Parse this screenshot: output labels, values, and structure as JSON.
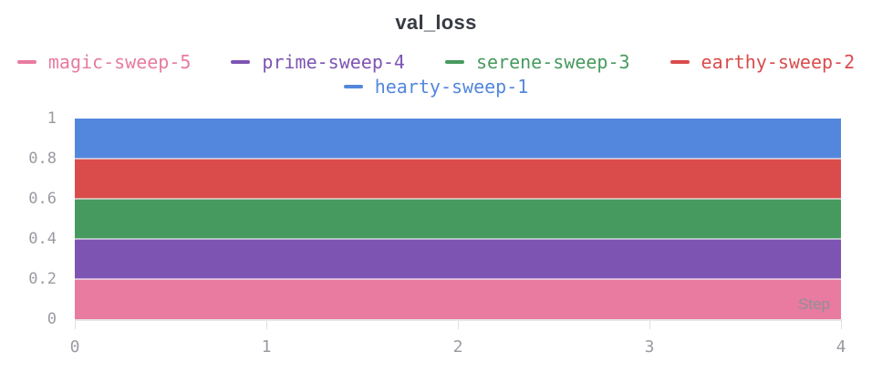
{
  "title": "val_loss",
  "legend": {
    "rows": [
      [
        {
          "label": "magic-sweep-5",
          "color": "#E87B9F"
        },
        {
          "label": "prime-sweep-4",
          "color": "#7D54B2"
        },
        {
          "label": "serene-sweep-3",
          "color": "#479A5F"
        },
        {
          "label": "earthy-sweep-2",
          "color": "#DA4C4C"
        }
      ],
      [
        {
          "label": "hearty-sweep-1",
          "color": "#5387DD"
        }
      ]
    ]
  },
  "chart_data": {
    "type": "area",
    "stacked": true,
    "title": "val_loss",
    "xlabel": "Step",
    "ylabel": "",
    "xlim": [
      0,
      4
    ],
    "ylim": [
      0,
      1
    ],
    "x_ticks": [
      "0",
      "1",
      "2",
      "3",
      "4"
    ],
    "x_tick_values": [
      0,
      1,
      2,
      3,
      4
    ],
    "y_ticks": [
      "0",
      "0.2",
      "0.4",
      "0.6",
      "0.8",
      "1"
    ],
    "y_tick_values": [
      0,
      0.2,
      0.4,
      0.6,
      0.8,
      1
    ],
    "grid": "light horizontal gridlines at y ticks, baseline at y=0",
    "legend_position": "top",
    "series": [
      {
        "name": "magic-sweep-5",
        "color": "#E87B9F",
        "band": [
          0.0,
          0.2
        ],
        "x": [
          0,
          1,
          2,
          3,
          4
        ],
        "values": [
          0.2,
          0.2,
          0.2,
          0.2,
          0.2
        ]
      },
      {
        "name": "prime-sweep-4",
        "color": "#7D54B2",
        "band": [
          0.2,
          0.4
        ],
        "x": [
          0,
          1,
          2,
          3,
          4
        ],
        "values": [
          0.2,
          0.2,
          0.2,
          0.2,
          0.2
        ]
      },
      {
        "name": "serene-sweep-3",
        "color": "#479A5F",
        "band": [
          0.4,
          0.6
        ],
        "x": [
          0,
          1,
          2,
          3,
          4
        ],
        "values": [
          0.2,
          0.2,
          0.2,
          0.2,
          0.2
        ]
      },
      {
        "name": "earthy-sweep-2",
        "color": "#DA4C4C",
        "band": [
          0.6,
          0.8
        ],
        "x": [
          0,
          1,
          2,
          3,
          4
        ],
        "values": [
          0.2,
          0.2,
          0.2,
          0.2,
          0.2
        ]
      },
      {
        "name": "hearty-sweep-1",
        "color": "#5387DD",
        "band": [
          0.8,
          1.0
        ],
        "x": [
          0,
          1,
          2,
          3,
          4
        ],
        "values": [
          0.2,
          0.2,
          0.2,
          0.2,
          0.2
        ]
      }
    ]
  },
  "colors": {
    "background": "#ffffff",
    "title_text": "#363b44",
    "axis_text": "#9a9ba2",
    "step_label_text": "#8e9097",
    "gridline": "#e6e6e6",
    "tickmark": "#e0e0e0",
    "band_divider": "rgba(255,255,255,0.55)"
  }
}
